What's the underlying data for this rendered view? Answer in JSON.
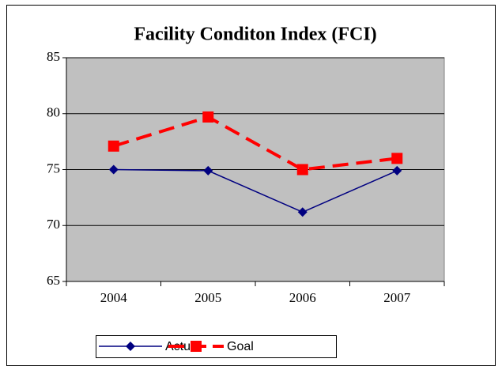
{
  "chart_data": {
    "type": "line",
    "title": "Facility Conditon Index (FCI)",
    "categories": [
      "2004",
      "2005",
      "2006",
      "2007"
    ],
    "series": [
      {
        "name": "Actual",
        "color": "#000080",
        "marker": "diamond",
        "line_style": "solid",
        "values": [
          75,
          74.9,
          71.2,
          74.9
        ]
      },
      {
        "name": "Goal",
        "color": "#ff0000",
        "marker": "square",
        "line_style": "dashed",
        "values": [
          77.1,
          79.7,
          75,
          76
        ]
      }
    ],
    "ylim": [
      65,
      85
    ],
    "yticks": [
      65,
      70,
      75,
      80,
      85
    ],
    "grid": true,
    "legend": "bottom",
    "plot_background": "#c0c0c0"
  }
}
